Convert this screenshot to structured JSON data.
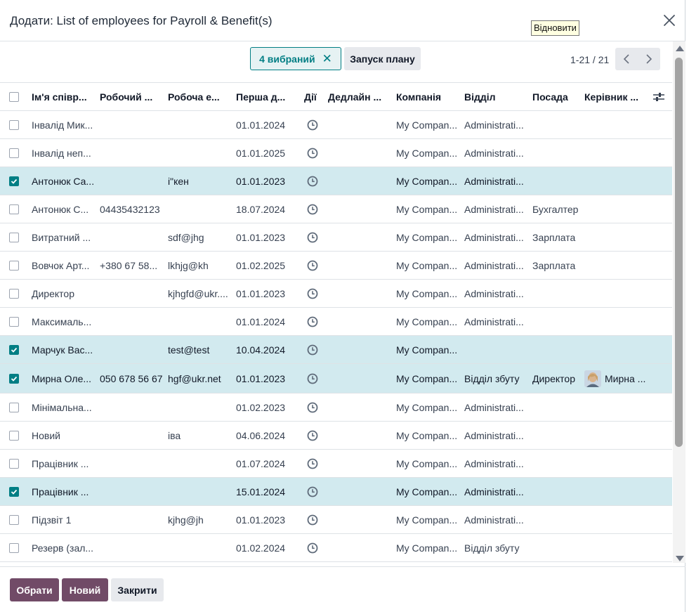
{
  "dialog": {
    "title": "Додати: List of employees for Payroll & Benefit(s)",
    "tooltip": "Відновити"
  },
  "controls": {
    "selected_label": "4 вибраний",
    "launch_plan_label": "Запуск плану",
    "pager_value": "1-21 / 21"
  },
  "columns": [
    "Ім'я співр...",
    "Робочий ...",
    "Робоча е...",
    "Перша д...",
    "Дії",
    "Дедлайн ...",
    "Компанія",
    "Відділ",
    "Посада",
    "Керівник ..."
  ],
  "rows": [
    {
      "selected": false,
      "name": "Інвалід Мик...",
      "phone": "",
      "email": "",
      "first_date": "01.01.2024",
      "deadline": "",
      "company": "My Compan...",
      "department": "Administrati...",
      "position": "",
      "manager": ""
    },
    {
      "selected": false,
      "name": "Інвалід неп...",
      "phone": "",
      "email": "",
      "first_date": "01.01.2025",
      "deadline": "",
      "company": "My Compan...",
      "department": "Administrati...",
      "position": "",
      "manager": ""
    },
    {
      "selected": true,
      "name": "Антонюк Са...",
      "phone": "",
      "email": "і\"кен",
      "first_date": "01.01.2023",
      "deadline": "",
      "company": "My Compan...",
      "department": "Administrati...",
      "position": "",
      "manager": ""
    },
    {
      "selected": false,
      "name": "Антонюк С...",
      "phone": "04435432123",
      "email": "",
      "first_date": "18.07.2024",
      "deadline": "",
      "company": "My Compan...",
      "department": "Administrati...",
      "position": "Бухгалтер",
      "manager": ""
    },
    {
      "selected": false,
      "name": "Витратний ...",
      "phone": "",
      "email": "sdf@jhg",
      "first_date": "01.01.2023",
      "deadline": "",
      "company": "My Compan...",
      "department": "Administrati...",
      "position": "Зарплата",
      "manager": ""
    },
    {
      "selected": false,
      "name": "Вовчок Арт...",
      "phone": "+380 67 58...",
      "email": "lkhjg@kh",
      "first_date": "01.02.2025",
      "deadline": "",
      "company": "My Compan...",
      "department": "Administrati...",
      "position": "Зарплата",
      "manager": ""
    },
    {
      "selected": false,
      "name": "Директор",
      "phone": "",
      "email": "kjhgfd@ukr....",
      "first_date": "01.01.2023",
      "deadline": "",
      "company": "My Compan...",
      "department": "Administrati...",
      "position": "",
      "manager": ""
    },
    {
      "selected": false,
      "name": "Максималь...",
      "phone": "",
      "email": "",
      "first_date": "01.01.2024",
      "deadline": "",
      "company": "My Compan...",
      "department": "Administrati...",
      "position": "",
      "manager": ""
    },
    {
      "selected": true,
      "name": "Марчук Вас...",
      "phone": "",
      "email": "test@test",
      "first_date": "10.04.2024",
      "deadline": "",
      "company": "My Compan...",
      "department": "",
      "position": "",
      "manager": ""
    },
    {
      "selected": true,
      "name": "Мирна Оле...",
      "phone": "050 678 56 67",
      "email": "hgf@ukr.net",
      "first_date": "01.01.2023",
      "deadline": "",
      "company": "My Compan...",
      "department": "Відділ збуту",
      "position": "Директор",
      "manager": "Мирна ..."
    },
    {
      "selected": false,
      "name": "Мінімальна...",
      "phone": "",
      "email": "",
      "first_date": "01.02.2023",
      "deadline": "",
      "company": "My Compan...",
      "department": "Administrati...",
      "position": "",
      "manager": ""
    },
    {
      "selected": false,
      "name": "Новий",
      "phone": "",
      "email": "іва",
      "first_date": "04.06.2024",
      "deadline": "",
      "company": "My Compan...",
      "department": "Administrati...",
      "position": "",
      "manager": ""
    },
    {
      "selected": false,
      "name": "Працівник ...",
      "phone": "",
      "email": "",
      "first_date": "01.07.2024",
      "deadline": "",
      "company": "My Compan...",
      "department": "Administrati...",
      "position": "",
      "manager": ""
    },
    {
      "selected": true,
      "name": "Працівник ...",
      "phone": "",
      "email": "",
      "first_date": "15.01.2024",
      "deadline": "",
      "company": "My Compan...",
      "department": "Administrati...",
      "position": "",
      "manager": ""
    },
    {
      "selected": false,
      "name": "Підзвіт 1",
      "phone": "",
      "email": "kjhg@jh",
      "first_date": "01.01.2023",
      "deadline": "",
      "company": "My Compan...",
      "department": "Administrati...",
      "position": "",
      "manager": ""
    },
    {
      "selected": false,
      "name": "Резерв (зал...",
      "phone": "",
      "email": "",
      "first_date": "01.02.2024",
      "deadline": "",
      "company": "My Compan...",
      "department": "Відділ збуту",
      "position": "",
      "manager": ""
    }
  ],
  "footer": {
    "select_label": "Обрати",
    "new_label": "Новий",
    "close_label": "Закрити"
  },
  "colors": {
    "accent_teal": "#017e84",
    "selected_row": "#d2eaef",
    "primary_button": "#714b67"
  }
}
